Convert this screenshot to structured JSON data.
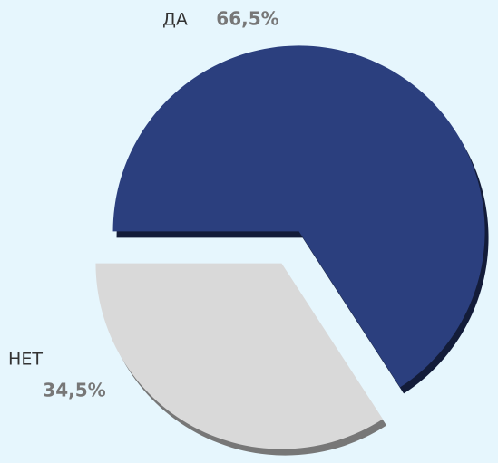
{
  "chart_data": {
    "type": "pie",
    "categories": [
      "ДА",
      "НЕТ"
    ],
    "values": [
      66.5,
      34.5
    ],
    "value_labels": [
      "66,5%",
      "34,5%"
    ],
    "colors": [
      "#2b3f7e",
      "#d9d9d9"
    ]
  }
}
